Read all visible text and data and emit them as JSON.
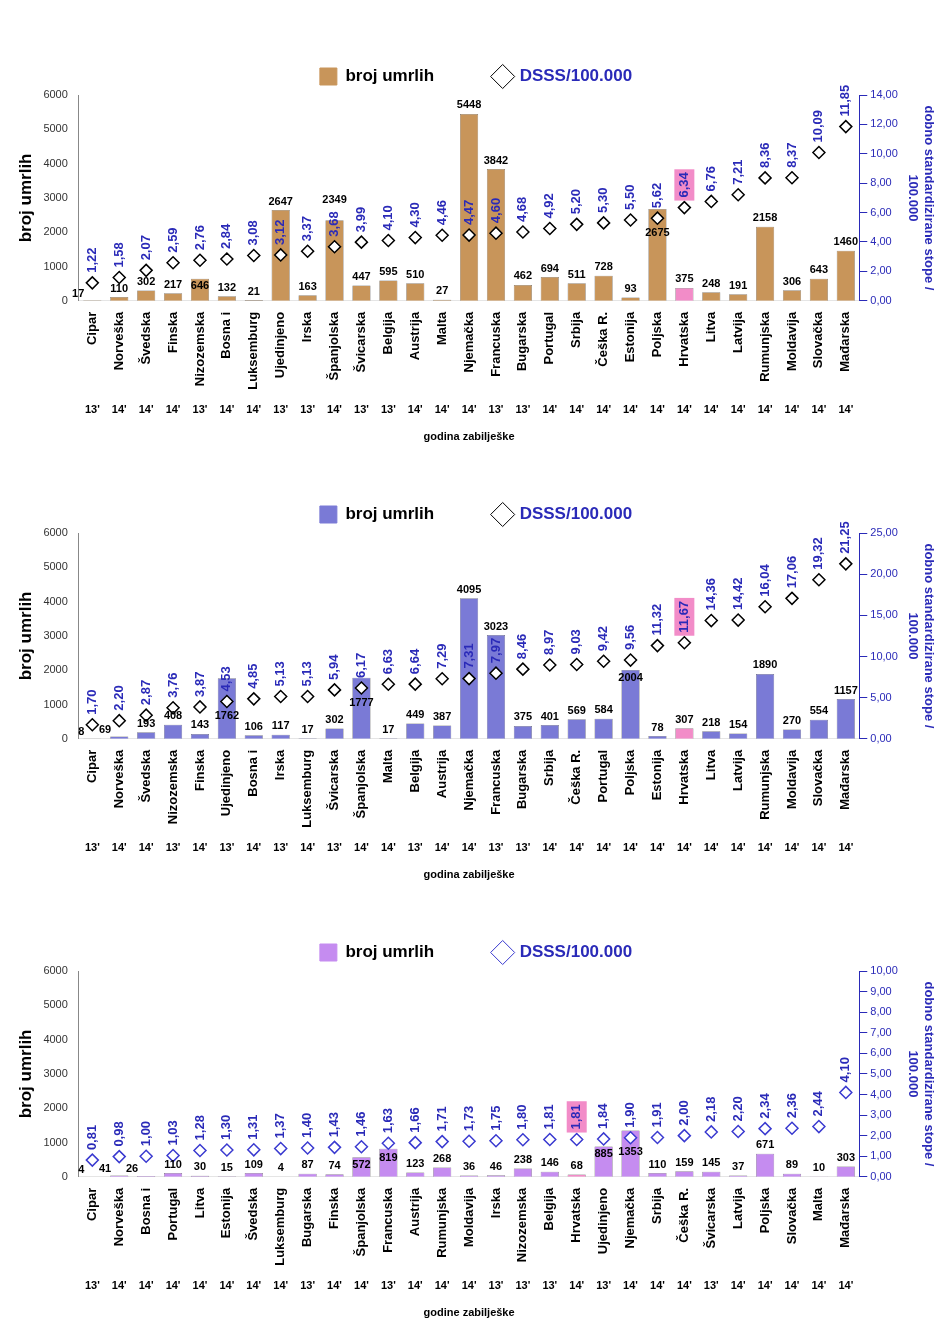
{
  "chart_data": [
    {
      "type": "bar",
      "ylabel": "broj umrlih",
      "y2label": "dobno standardizirane stope /\n100.000",
      "xlabel": "godina zabilješke",
      "legend": "top",
      "grid": false,
      "data_labels": true,
      "categories": [
        "Cipar",
        "Norveška",
        "Švedska",
        "Finska",
        "Nizozemska",
        "Bosna i",
        "Luksemburg",
        "Ujedinjeno",
        "Irska",
        "Španjolska",
        "Švicarska",
        "Belgija",
        "Austrija",
        "Malta",
        "Njemačka",
        "Francuska",
        "Bugarska",
        "Portugal",
        "Srbija",
        "Češka R.",
        "Estonija",
        "Poljska",
        "Hrvatska",
        "Litva",
        "Latvija",
        "Rumunjska",
        "Moldavija",
        "Slovačka",
        "Mađarska"
      ],
      "ylim": [
        0,
        6000
      ],
      "yticks": [
        0,
        1000,
        2000,
        3000,
        4000,
        5000,
        6000
      ],
      "y2lim": [
        0,
        14
      ],
      "y2ticks": [
        {
          "value": 0,
          "label": "0,00"
        },
        {
          "value": 2,
          "label": "2,00"
        },
        {
          "value": 4,
          "label": "4,00"
        },
        {
          "value": 6,
          "label": "6,00"
        },
        {
          "value": 8,
          "label": "8,00"
        },
        {
          "value": 10,
          "label": "10,00"
        },
        {
          "value": 12,
          "label": "12,00"
        },
        {
          "value": 14,
          "label": "14,00"
        }
      ],
      "series": [
        {
          "name": "broj umrlih",
          "color": "#c8955a",
          "colors": [
            "#c8955a",
            "#c8955a",
            "#c8955a",
            "#c8955a",
            "#c8955a",
            "#c8955a",
            "#c8955a",
            "#c8955a",
            "#c8955a",
            "#c8955a",
            "#c8955a",
            "#c8955a",
            "#c8955a",
            "#c8955a",
            "#c8955a",
            "#c8955a",
            "#c8955a",
            "#c8955a",
            "#c8955a",
            "#c8955a",
            "#c8955a",
            "#c8955a",
            "#f28cc8",
            "#c8955a",
            "#c8955a",
            "#c8955a",
            "#c8955a",
            "#c8955a",
            "#c8955a"
          ],
          "values": [
            17,
            110,
            302,
            217,
            646,
            132,
            21,
            2647,
            163,
            2349,
            447,
            595,
            510,
            27,
            5448,
            3842,
            462,
            694,
            511,
            728,
            93,
            2675,
            375,
            248,
            191,
            2158,
            306,
            643,
            1460
          ]
        },
        {
          "name": "DSSS/100.000",
          "type": "scatter",
          "axis": "y2",
          "marker": "diamond",
          "color": "#000000",
          "values": [
            1.22,
            1.58,
            2.07,
            2.59,
            2.76,
            2.84,
            3.08,
            3.12,
            3.37,
            3.68,
            3.99,
            4.1,
            4.3,
            4.46,
            4.47,
            4.6,
            4.68,
            4.92,
            5.2,
            5.3,
            5.5,
            5.62,
            6.34,
            6.76,
            7.21,
            8.36,
            8.37,
            10.09,
            11.85
          ],
          "value_labels": [
            "1,22",
            "1,58",
            "2,07",
            "2,59",
            "2,76",
            "2,84",
            "3,08",
            "3,12",
            "3,37",
            "3,68",
            "3,99",
            "4,10",
            "4,30",
            "4,46",
            "4,47",
            "4,60",
            "4,68",
            "4,92",
            "5,20",
            "5,30",
            "5,50",
            "5,62",
            "6,34",
            "6,76",
            "7,21",
            "8,36",
            "8,37",
            "10,09",
            "11,85"
          ]
        }
      ],
      "annotations": [
        "13'",
        "14'",
        "14'",
        "14'",
        "13'",
        "14'",
        "14'",
        "13'",
        "13'",
        "14'",
        "13'",
        "13'",
        "14'",
        "14'",
        "14'",
        "13'",
        "13'",
        "14'",
        "14'",
        "14'",
        "14'",
        "14'",
        "14'",
        "14'",
        "14'",
        "14'",
        "14'",
        "14'",
        "14'"
      ]
    },
    {
      "type": "bar",
      "ylabel": "broj umrlih",
      "y2label": "dobno standardizirane stope /\n100.000",
      "xlabel": "godina zabilješke",
      "legend": "top",
      "grid": false,
      "data_labels": true,
      "categories": [
        "Cipar",
        "Norveška",
        "Švedska",
        "Nizozemska",
        "Finska",
        "Ujedinjeno",
        "Bosna i",
        "Irska",
        "Luksemburg",
        "Švicarska",
        "Španjolska",
        "Malta",
        "Belgija",
        "Austrija",
        "Njemačka",
        "Francuska",
        "Bugarska",
        "Srbija",
        "Češka R.",
        "Portugal",
        "Poljska",
        "Estonija",
        "Hrvatska",
        "Litva",
        "Latvija",
        "Rumunjska",
        "Moldavija",
        "Slovačka",
        "Mađarska"
      ],
      "ylim": [
        0,
        6000
      ],
      "yticks": [
        0,
        1000,
        2000,
        3000,
        4000,
        5000,
        6000
      ],
      "y2lim": [
        0,
        25
      ],
      "y2ticks": [
        {
          "value": 0,
          "label": "0,00"
        },
        {
          "value": 5,
          "label": "5,00"
        },
        {
          "value": 10,
          "label": "10,00"
        },
        {
          "value": 15,
          "label": "15,00"
        },
        {
          "value": 20,
          "label": "20,00"
        },
        {
          "value": 25,
          "label": "25,00"
        }
      ],
      "series": [
        {
          "name": "broj umrlih",
          "color": "#7a7ad6",
          "colors": [
            "#7a7ad6",
            "#7a7ad6",
            "#7a7ad6",
            "#7a7ad6",
            "#7a7ad6",
            "#7a7ad6",
            "#7a7ad6",
            "#7a7ad6",
            "#7a7ad6",
            "#7a7ad6",
            "#7a7ad6",
            "#7a7ad6",
            "#7a7ad6",
            "#7a7ad6",
            "#7a7ad6",
            "#7a7ad6",
            "#7a7ad6",
            "#7a7ad6",
            "#7a7ad6",
            "#7a7ad6",
            "#7a7ad6",
            "#7a7ad6",
            "#f28cc8",
            "#7a7ad6",
            "#7a7ad6",
            "#7a7ad6",
            "#7a7ad6",
            "#7a7ad6",
            "#7a7ad6"
          ],
          "values": [
            8,
            69,
            193,
            408,
            143,
            1762,
            106,
            117,
            17,
            302,
            1777,
            17,
            449,
            387,
            4095,
            3023,
            375,
            401,
            569,
            584,
            2004,
            78,
            307,
            218,
            154,
            1890,
            270,
            554,
            1157
          ]
        },
        {
          "name": "DSSS/100.000",
          "type": "scatter",
          "axis": "y2",
          "marker": "diamond",
          "color": "#000000",
          "values": [
            1.7,
            2.2,
            2.87,
            3.76,
            3.87,
            4.53,
            4.85,
            5.13,
            5.13,
            5.94,
            6.17,
            6.63,
            6.64,
            7.29,
            7.31,
            7.97,
            8.46,
            8.97,
            9.03,
            9.42,
            9.56,
            11.32,
            11.67,
            14.36,
            14.42,
            16.04,
            17.06,
            19.32,
            21.25
          ],
          "value_labels": [
            "1,70",
            "2,20",
            "2,87",
            "3,76",
            "3,87",
            "4,53",
            "4,85",
            "5,13",
            "5,13",
            "5,94",
            "6,17",
            "6,63",
            "6,64",
            "7,29",
            "7,31",
            "7,97",
            "8,46",
            "8,97",
            "9,03",
            "9,42",
            "9,56",
            "11,32",
            "11,67",
            "14,36",
            "14,42",
            "16,04",
            "17,06",
            "19,32",
            "21,25"
          ]
        }
      ],
      "annotations": [
        "13'",
        "14'",
        "14'",
        "13'",
        "14'",
        "13'",
        "14'",
        "13'",
        "14'",
        "13'",
        "14'",
        "14'",
        "13'",
        "14'",
        "14'",
        "13'",
        "13'",
        "14'",
        "14'",
        "14'",
        "14'",
        "14'",
        "14'",
        "14'",
        "14'",
        "14'",
        "14'",
        "14'",
        "14'"
      ]
    },
    {
      "type": "bar",
      "ylabel": "broj umrlih",
      "y2label": "dobno standardizirane stope /\n100.000",
      "xlabel": "godine zabilješke",
      "legend": "top",
      "grid": false,
      "data_labels": true,
      "categories": [
        "Cipar",
        "Norveška",
        "Bosna i",
        "Portugal",
        "Litva",
        "Estonija",
        "Švedska",
        "Luksemburg",
        "Bugarska",
        "Finska",
        "Španjolska",
        "Francuska",
        "Austrija",
        "Rumunjska",
        "Moldavija",
        "Irska",
        "Nizozemska",
        "Belgija",
        "Hrvatska",
        "Ujedinjeno",
        "Njemačka",
        "Srbija",
        "Češka R.",
        "Švicarska",
        "Latvija",
        "Poljska",
        "Slovačka",
        "Malta",
        "Mađarska"
      ],
      "ylim": [
        0,
        6000
      ],
      "yticks": [
        0,
        1000,
        2000,
        3000,
        4000,
        5000,
        6000
      ],
      "y2lim": [
        0,
        10
      ],
      "y2ticks": [
        {
          "value": 0,
          "label": "0,00"
        },
        {
          "value": 1,
          "label": "1,00"
        },
        {
          "value": 2,
          "label": "2,00"
        },
        {
          "value": 3,
          "label": "3,00"
        },
        {
          "value": 4,
          "label": "4,00"
        },
        {
          "value": 5,
          "label": "5,00"
        },
        {
          "value": 6,
          "label": "6,00"
        },
        {
          "value": 7,
          "label": "7,00"
        },
        {
          "value": 8,
          "label": "8,00"
        },
        {
          "value": 9,
          "label": "9,00"
        },
        {
          "value": 10,
          "label": "10,00"
        }
      ],
      "series": [
        {
          "name": "broj umrlih",
          "color": "#c58cf0",
          "colors": [
            "#c58cf0",
            "#c58cf0",
            "#c58cf0",
            "#c58cf0",
            "#c58cf0",
            "#c58cf0",
            "#c58cf0",
            "#c58cf0",
            "#c58cf0",
            "#c58cf0",
            "#c58cf0",
            "#c58cf0",
            "#c58cf0",
            "#c58cf0",
            "#c58cf0",
            "#c58cf0",
            "#c58cf0",
            "#c58cf0",
            "#f28cc8",
            "#c58cf0",
            "#c58cf0",
            "#c58cf0",
            "#c58cf0",
            "#c58cf0",
            "#c58cf0",
            "#c58cf0",
            "#c58cf0",
            "#c58cf0",
            "#c58cf0"
          ],
          "values": [
            4,
            41,
            26,
            110,
            30,
            15,
            109,
            4,
            87,
            74,
            572,
            819,
            123,
            268,
            36,
            46,
            238,
            146,
            68,
            885,
            1353,
            110,
            159,
            145,
            37,
            671,
            89,
            10,
            303
          ]
        },
        {
          "name": "DSSS/100.000",
          "type": "scatter",
          "axis": "y2",
          "marker": "diamond",
          "color": "#3a3ad0",
          "values": [
            0.81,
            0.98,
            1.0,
            1.03,
            1.28,
            1.3,
            1.31,
            1.37,
            1.4,
            1.43,
            1.46,
            1.63,
            1.66,
            1.71,
            1.73,
            1.75,
            1.8,
            1.81,
            1.81,
            1.84,
            1.9,
            1.91,
            2.0,
            2.18,
            2.2,
            2.34,
            2.36,
            2.44,
            4.1
          ],
          "value_labels": [
            "0,81",
            "0,98",
            "1,00",
            "1,03",
            "1,28",
            "1,30",
            "1,31",
            "1,37",
            "1,40",
            "1,43",
            "1,46",
            "1,63",
            "1,66",
            "1,71",
            "1,73",
            "1,75",
            "1,80",
            "1,81",
            "1,81",
            "1,84",
            "1,90",
            "1,91",
            "2,00",
            "2,18",
            "2,20",
            "2,34",
            "2,36",
            "2,44",
            "4,10"
          ]
        }
      ],
      "annotations": [
        "13'",
        "14'",
        "14'",
        "14'",
        "14'",
        "14'",
        "14'",
        "14'",
        "13'",
        "14'",
        "14'",
        "13'",
        "14'",
        "14'",
        "14'",
        "13'",
        "13'",
        "13'",
        "14'",
        "13'",
        "14'",
        "14'",
        "14'",
        "13'",
        "14'",
        "14'",
        "14'",
        "14'",
        "14'"
      ]
    }
  ]
}
